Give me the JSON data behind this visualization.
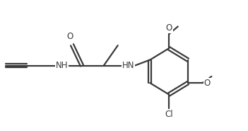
{
  "bg_color": "#ffffff",
  "line_color": "#3a3a3a",
  "lw": 1.6,
  "fs": 8.5,
  "xlim": [
    0.0,
    8.8
  ],
  "ylim": [
    0.0,
    4.4
  ],
  "figsize": [
    3.51,
    1.85
  ],
  "dpi": 100
}
